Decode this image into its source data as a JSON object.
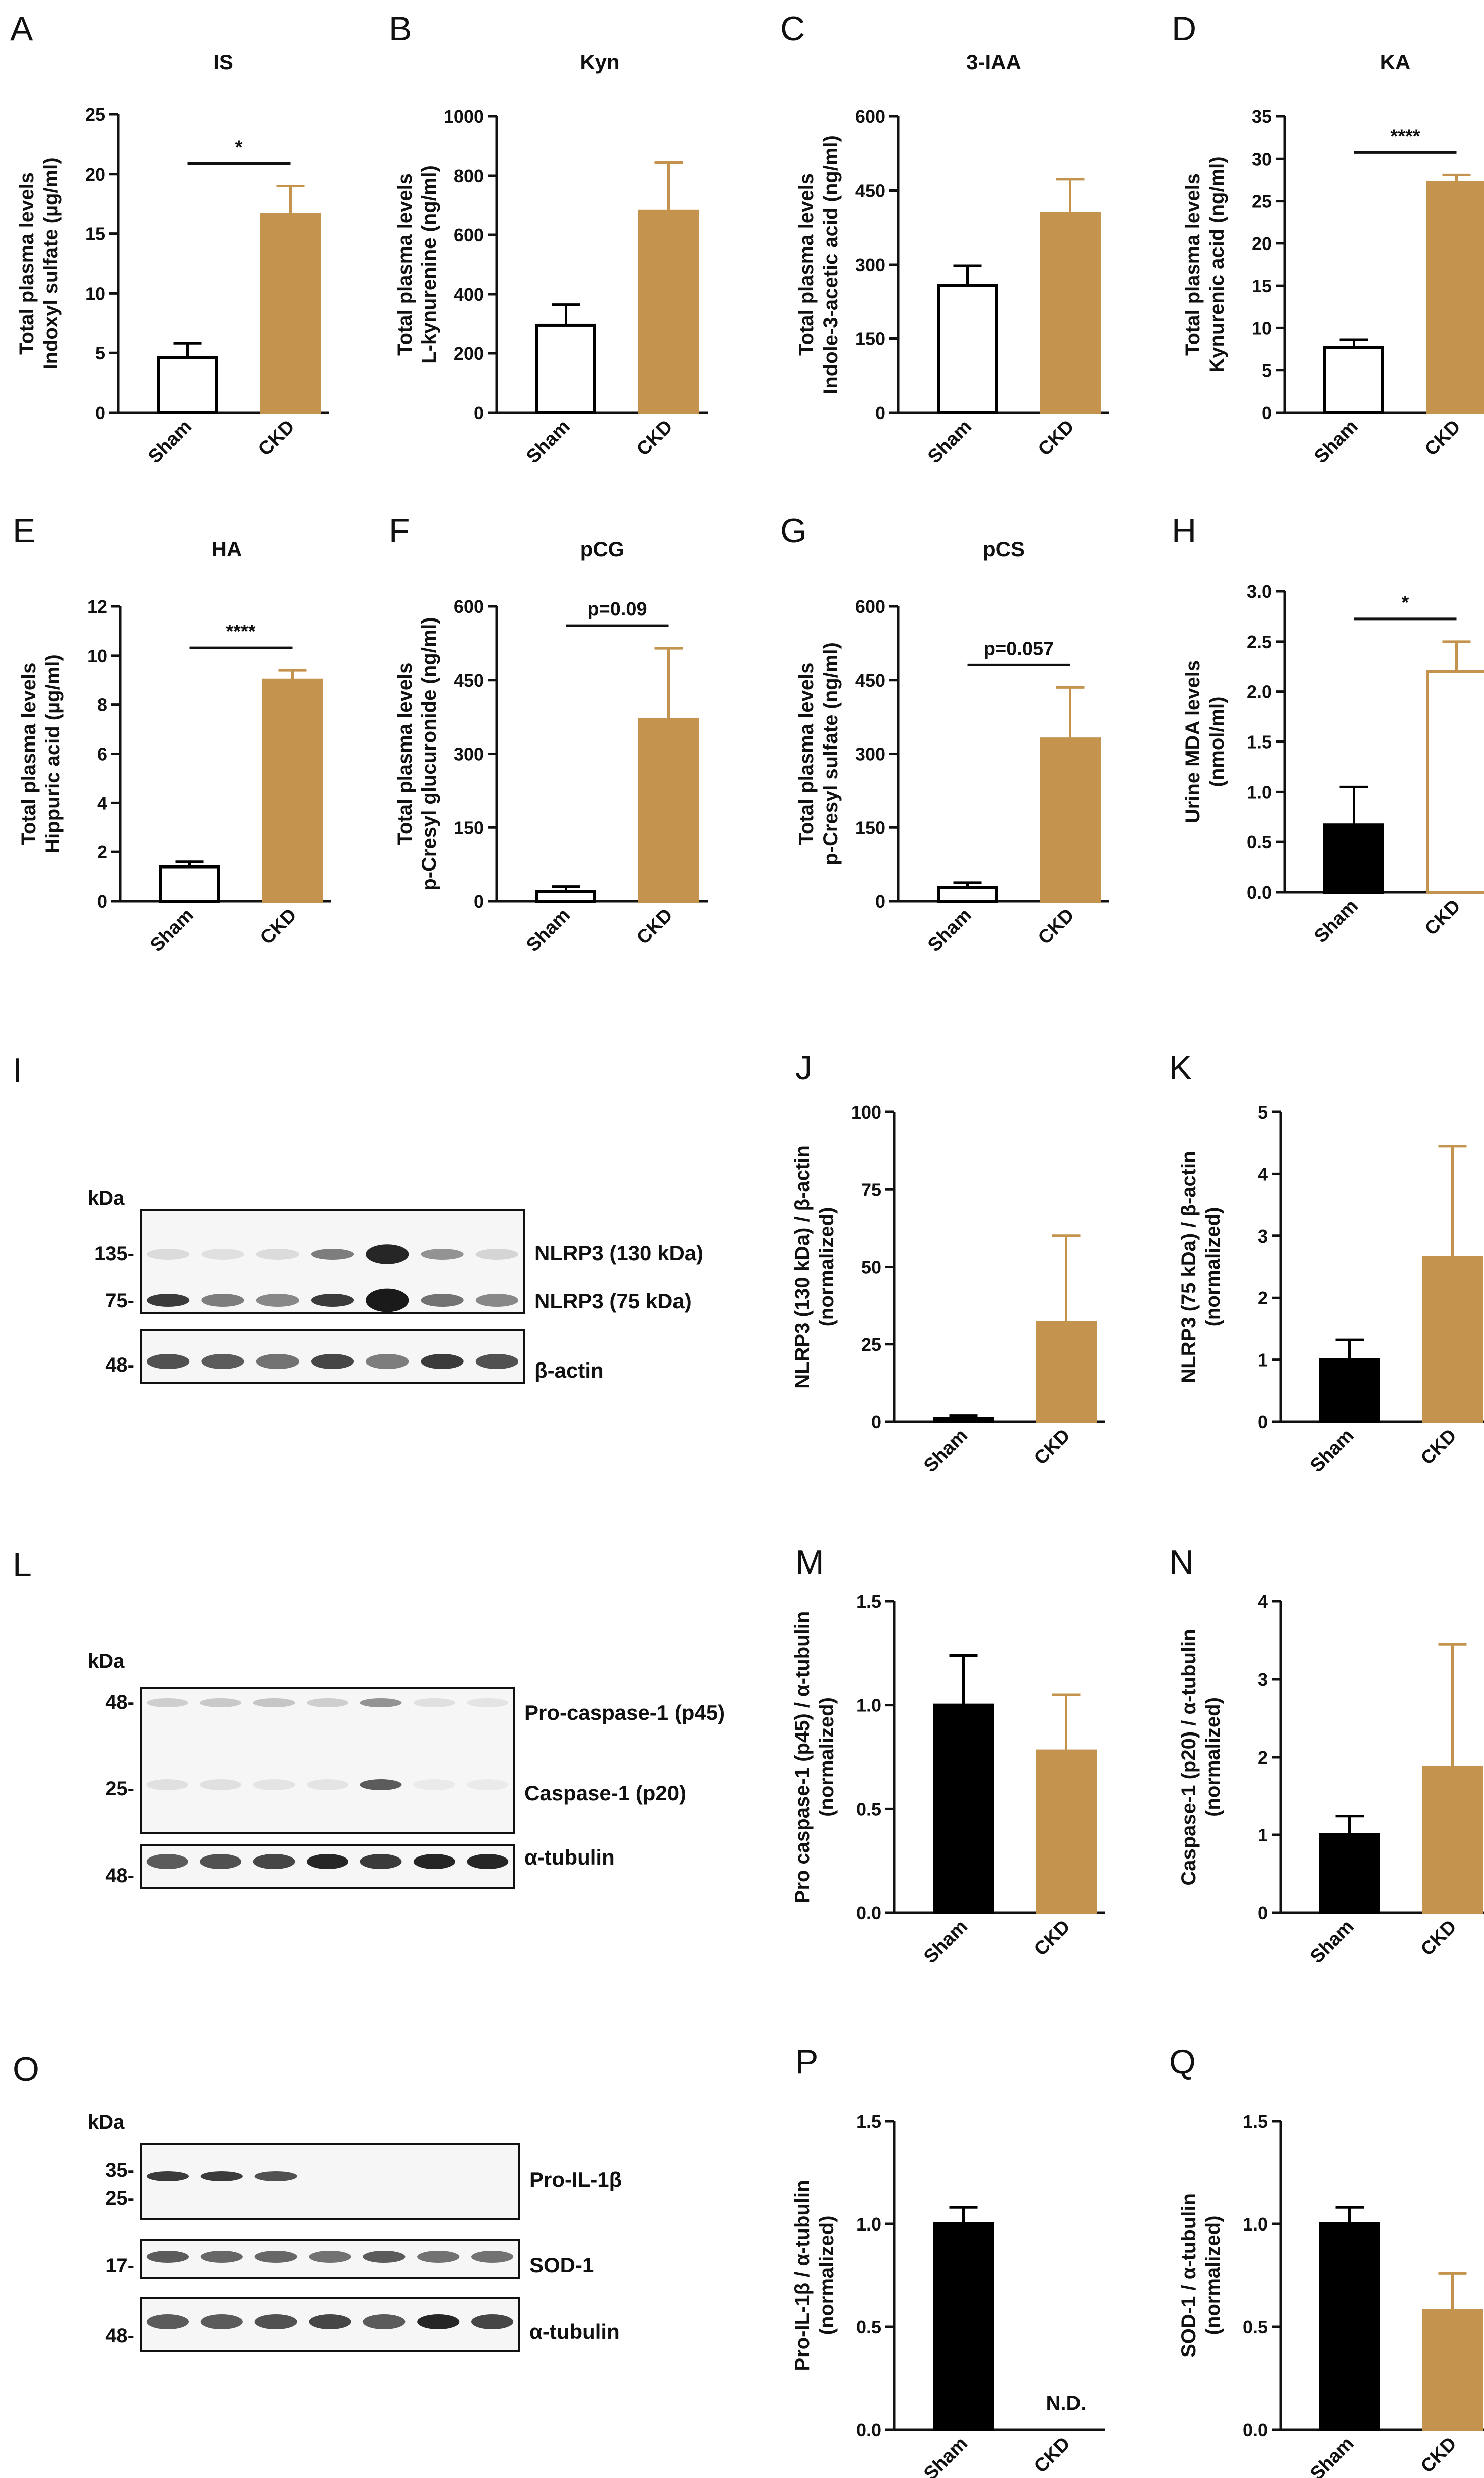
{
  "colors": {
    "sham": "#000000",
    "ckd": "#C4944E",
    "axis": "#111111",
    "blot": "#1a1a1a"
  },
  "chart_data": [
    {
      "id": "A",
      "type": "bar",
      "title": "IS",
      "ylabel": [
        "Total plasma levels",
        "Indoxyl sulfate (µg/ml)"
      ],
      "categories": [
        "Sham",
        "CKD"
      ],
      "values": [
        4.6,
        16.6
      ],
      "errors": [
        1.2,
        2.4
      ],
      "fills": [
        "open",
        "solid"
      ],
      "ylim": [
        0,
        25
      ],
      "yticks": [
        0,
        5,
        10,
        15,
        20,
        25
      ],
      "sig": "*"
    },
    {
      "id": "B",
      "type": "bar",
      "title": "Kyn",
      "ylabel": [
        "Total plasma levels",
        "L-kynurenine (ng/ml)"
      ],
      "categories": [
        "Sham",
        "CKD"
      ],
      "values": [
        295,
        680
      ],
      "errors": [
        70,
        165
      ],
      "fills": [
        "open",
        "solid"
      ],
      "ylim": [
        0,
        1000
      ],
      "yticks": [
        0,
        200,
        400,
        600,
        800,
        1000
      ]
    },
    {
      "id": "C",
      "type": "bar",
      "title": "3-IAA",
      "ylabel": [
        "Total plasma levels",
        "Indole-3-acetic acid (ng/ml)"
      ],
      "categories": [
        "Sham",
        "CKD"
      ],
      "values": [
        258,
        403
      ],
      "errors": [
        40,
        70
      ],
      "fills": [
        "open",
        "solid"
      ],
      "ylim": [
        0,
        600
      ],
      "yticks": [
        0,
        150,
        300,
        450,
        600
      ]
    },
    {
      "id": "D",
      "type": "bar",
      "title": "KA",
      "ylabel": [
        "Total plasma levels",
        "Kynurenic acid (ng/ml)"
      ],
      "categories": [
        "Sham",
        "CKD"
      ],
      "values": [
        7.7,
        27.2
      ],
      "errors": [
        0.9,
        0.9
      ],
      "fills": [
        "open",
        "solid"
      ],
      "ylim": [
        0,
        35
      ],
      "yticks": [
        0,
        5,
        10,
        15,
        20,
        25,
        30,
        35
      ],
      "sig": "****"
    },
    {
      "id": "E",
      "type": "bar",
      "title": "HA",
      "ylabel": [
        "Total plasma levels",
        "Hippuric acid (µg/ml)"
      ],
      "categories": [
        "Sham",
        "CKD"
      ],
      "values": [
        1.4,
        9.0
      ],
      "errors": [
        0.2,
        0.4
      ],
      "fills": [
        "open",
        "solid"
      ],
      "ylim": [
        0,
        12
      ],
      "yticks": [
        0,
        2,
        4,
        6,
        8,
        10,
        12
      ],
      "sig": "****"
    },
    {
      "id": "F",
      "type": "bar",
      "title": "pCG",
      "ylabel": [
        "Total plasma levels",
        "p-Cresyl glucuronide (ng/ml)"
      ],
      "categories": [
        "Sham",
        "CKD"
      ],
      "values": [
        20,
        370
      ],
      "errors": [
        10,
        145
      ],
      "fills": [
        "open",
        "solid"
      ],
      "ylim": [
        0,
        600
      ],
      "yticks": [
        0,
        150,
        300,
        450,
        600
      ],
      "sig": "p=0.09"
    },
    {
      "id": "G",
      "type": "bar",
      "title": "pCS",
      "ylabel": [
        "Total plasma levels",
        "p-Cresyl sulfate (ng/ml)"
      ],
      "categories": [
        "Sham",
        "CKD"
      ],
      "values": [
        28,
        330
      ],
      "errors": [
        10,
        105
      ],
      "fills": [
        "open",
        "solid"
      ],
      "ylim": [
        0,
        600
      ],
      "yticks": [
        0,
        150,
        300,
        450,
        600
      ],
      "sig": "p=0.057"
    },
    {
      "id": "H",
      "type": "bar",
      "title": "",
      "ylabel": [
        "Urine MDA levels",
        "(nmol/ml)"
      ],
      "categories": [
        "Sham",
        "CKD"
      ],
      "values": [
        0.67,
        2.2
      ],
      "errors": [
        0.38,
        0.3
      ],
      "fills": [
        "solid",
        "open"
      ],
      "ylim": [
        0,
        3
      ],
      "yticks": [
        "0.0",
        "0.5",
        "1.0",
        "1.5",
        "2.0",
        "2.5",
        "3.0"
      ],
      "sig": "*"
    },
    {
      "id": "J",
      "type": "bar",
      "title": "",
      "ylabel": [
        "NLRP3 (130 kDa) / β-actin",
        "(normalized)"
      ],
      "categories": [
        "Sham",
        "CKD"
      ],
      "values": [
        1,
        32
      ],
      "errors": [
        1,
        28
      ],
      "fills": [
        "solid",
        "solid"
      ],
      "ylim": [
        0,
        100
      ],
      "yticks": [
        0,
        25,
        50,
        75,
        100
      ]
    },
    {
      "id": "K",
      "type": "bar",
      "title": "",
      "ylabel": [
        "NLRP3 (75 kDa) / β-actin",
        "(normalized)"
      ],
      "categories": [
        "Sham",
        "CKD"
      ],
      "values": [
        1.0,
        2.65
      ],
      "errors": [
        0.32,
        1.8
      ],
      "fills": [
        "solid",
        "solid"
      ],
      "ylim": [
        0,
        5
      ],
      "yticks": [
        0,
        1,
        2,
        3,
        4,
        5
      ]
    },
    {
      "id": "M",
      "type": "bar",
      "title": "",
      "ylabel": [
        "Pro caspase-1 (p45) / α-tubulin",
        "(normalized)"
      ],
      "categories": [
        "Sham",
        "CKD"
      ],
      "values": [
        1.0,
        0.78
      ],
      "errors": [
        0.24,
        0.27
      ],
      "fills": [
        "solid",
        "solid"
      ],
      "ylim": [
        0,
        1.5
      ],
      "yticks": [
        "0.0",
        "0.5",
        "1.0",
        "1.5"
      ]
    },
    {
      "id": "N",
      "type": "bar",
      "title": "",
      "ylabel": [
        "Caspase-1 (p20) / α-tubulin",
        "(normalized)"
      ],
      "categories": [
        "Sham",
        "CKD"
      ],
      "values": [
        1.0,
        1.87
      ],
      "errors": [
        0.24,
        1.58
      ],
      "fills": [
        "solid",
        "solid"
      ],
      "ylim": [
        0,
        4
      ],
      "yticks": [
        0,
        1,
        2,
        3,
        4
      ]
    },
    {
      "id": "P",
      "type": "bar",
      "title": "",
      "ylabel": [
        "Pro-IL-1β / α-tubulin",
        "(normalized)"
      ],
      "categories": [
        "Sham",
        "CKD"
      ],
      "values": [
        1.0,
        0
      ],
      "errors": [
        0.08,
        0
      ],
      "fills": [
        "solid",
        "solid"
      ],
      "ylim": [
        0,
        1.5
      ],
      "yticks": [
        "0.0",
        "0.5",
        "1.0",
        "1.5"
      ],
      "annotation": "N.D."
    },
    {
      "id": "Q",
      "type": "bar",
      "title": "",
      "ylabel": [
        "SOD-1 / α-tubulin",
        "(normalized)"
      ],
      "categories": [
        "Sham",
        "CKD"
      ],
      "values": [
        1.0,
        0.58
      ],
      "errors": [
        0.08,
        0.18
      ],
      "fills": [
        "solid",
        "solid"
      ],
      "ylim": [
        0,
        1.5
      ],
      "yticks": [
        "0.0",
        "0.5",
        "1.0",
        "1.5"
      ]
    }
  ],
  "blots": [
    {
      "id": "I",
      "kda": "kDa",
      "panels": [
        {
          "markers": [
            "135-",
            "75-"
          ],
          "labels": [
            "NLRP3 (130 kDa)",
            "NLRP3  (75 kDa)"
          ]
        },
        {
          "markers": [
            "48-"
          ],
          "labels": [
            "β-actin"
          ]
        }
      ]
    },
    {
      "id": "L",
      "kda": "kDa",
      "panels": [
        {
          "markers": [
            "48-",
            "25-"
          ],
          "labels": [
            "Pro-caspase-1 (p45)",
            "Caspase-1 (p20)"
          ]
        },
        {
          "markers": [
            "48-"
          ],
          "labels": [
            "α-tubulin"
          ]
        }
      ]
    },
    {
      "id": "O",
      "kda": "kDa",
      "panels": [
        {
          "markers": [
            "35-",
            "25-"
          ],
          "labels": [
            "Pro-IL-1β"
          ]
        },
        {
          "markers": [
            "17-"
          ],
          "labels": [
            "SOD-1"
          ]
        },
        {
          "markers": [
            "48-"
          ],
          "labels": [
            "α-tubulin"
          ]
        }
      ]
    }
  ]
}
